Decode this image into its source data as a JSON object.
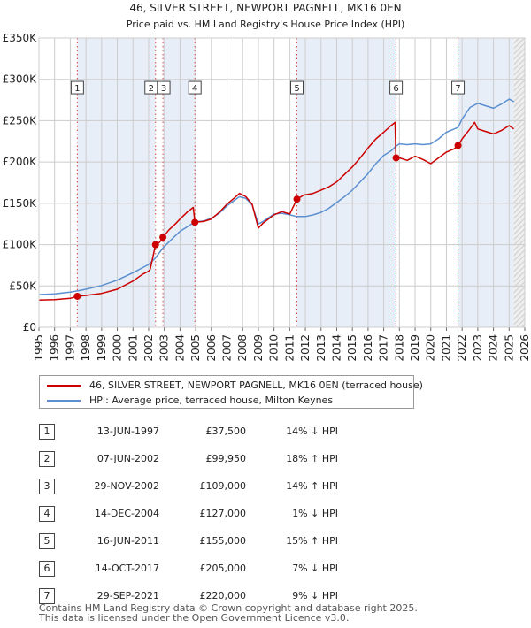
{
  "chart_data": {
    "type": "line",
    "title": "46, SILVER STREET, NEWPORT PAGNELL, MK16 0EN",
    "subtitle": "Price paid vs. HM Land Registry's House Price Index (HPI)",
    "xlabel": "",
    "ylabel": "",
    "xlim": [
      1995,
      2026
    ],
    "ylim": [
      0,
      350000
    ],
    "x_ticks": [
      "1995",
      "1996",
      "1997",
      "1998",
      "1999",
      "2000",
      "2001",
      "2002",
      "2003",
      "2004",
      "2005",
      "2006",
      "2007",
      "2008",
      "2009",
      "2010",
      "2011",
      "2012",
      "2013",
      "2014",
      "2015",
      "2016",
      "2017",
      "2018",
      "2019",
      "2020",
      "2021",
      "2022",
      "2023",
      "2024",
      "2025",
      "2026"
    ],
    "y_ticks": [
      {
        "value": 0,
        "label": "£0"
      },
      {
        "value": 50000,
        "label": "£50K"
      },
      {
        "value": 100000,
        "label": "£100K"
      },
      {
        "value": 150000,
        "label": "£150K"
      },
      {
        "value": 200000,
        "label": "£200K"
      },
      {
        "value": 250000,
        "label": "£250K"
      },
      {
        "value": 300000,
        "label": "£300K"
      },
      {
        "value": 350000,
        "label": "£350K"
      }
    ],
    "grid": true,
    "series": [
      {
        "name": "46, SILVER STREET, NEWPORT PAGNELL, MK16 0EN (terraced house)",
        "color": "#cc0000",
        "points": [
          [
            1995.0,
            33000
          ],
          [
            1996.0,
            33500
          ],
          [
            1997.0,
            35000
          ],
          [
            1997.45,
            37500
          ],
          [
            1998.0,
            38500
          ],
          [
            1999.0,
            41000
          ],
          [
            2000.0,
            46000
          ],
          [
            2001.0,
            56000
          ],
          [
            2001.6,
            64000
          ],
          [
            2002.0,
            68000
          ],
          [
            2002.1,
            70000
          ],
          [
            2002.44,
            99950
          ],
          [
            2002.7,
            103000
          ],
          [
            2002.91,
            109000
          ],
          [
            2003.3,
            118000
          ],
          [
            2003.7,
            125000
          ],
          [
            2004.0,
            131000
          ],
          [
            2004.5,
            140000
          ],
          [
            2004.85,
            145000
          ],
          [
            2004.95,
            127000
          ],
          [
            2005.5,
            128000
          ],
          [
            2006.0,
            131000
          ],
          [
            2006.5,
            139000
          ],
          [
            2007.0,
            149000
          ],
          [
            2007.5,
            157000
          ],
          [
            2007.8,
            162000
          ],
          [
            2008.2,
            158000
          ],
          [
            2008.6,
            149000
          ],
          [
            2009.0,
            120000
          ],
          [
            2009.3,
            126000
          ],
          [
            2010.0,
            136000
          ],
          [
            2010.5,
            140000
          ],
          [
            2011.0,
            137000
          ],
          [
            2011.46,
            155000
          ],
          [
            2011.9,
            160000
          ],
          [
            2012.5,
            162000
          ],
          [
            2013.0,
            166000
          ],
          [
            2013.5,
            170000
          ],
          [
            2014.0,
            176000
          ],
          [
            2014.5,
            185000
          ],
          [
            2015.0,
            194000
          ],
          [
            2015.5,
            205000
          ],
          [
            2016.0,
            217000
          ],
          [
            2016.5,
            228000
          ],
          [
            2017.0,
            236000
          ],
          [
            2017.4,
            243000
          ],
          [
            2017.72,
            248000
          ],
          [
            2017.78,
            205000
          ],
          [
            2018.0,
            205000
          ],
          [
            2018.5,
            202000
          ],
          [
            2019.0,
            207000
          ],
          [
            2019.5,
            203000
          ],
          [
            2020.0,
            198000
          ],
          [
            2020.5,
            205000
          ],
          [
            2021.0,
            212000
          ],
          [
            2021.5,
            216000
          ],
          [
            2021.74,
            220000
          ],
          [
            2022.0,
            228000
          ],
          [
            2022.5,
            240000
          ],
          [
            2022.8,
            248000
          ],
          [
            2023.0,
            240000
          ],
          [
            2023.5,
            237000
          ],
          [
            2024.0,
            234000
          ],
          [
            2024.5,
            238000
          ],
          [
            2025.0,
            244000
          ],
          [
            2025.3,
            240000
          ]
        ]
      },
      {
        "name": "HPI: Average price, terraced house, Milton Keynes",
        "color": "#5b8fd0",
        "points": [
          [
            1995.0,
            39500
          ],
          [
            1996.0,
            40500
          ],
          [
            1997.0,
            42500
          ],
          [
            1997.45,
            44000
          ],
          [
            1998.0,
            46000
          ],
          [
            1999.0,
            50500
          ],
          [
            2000.0,
            57000
          ],
          [
            2001.0,
            66000
          ],
          [
            2002.0,
            76000
          ],
          [
            2002.44,
            84000
          ],
          [
            2002.91,
            96000
          ],
          [
            2003.5,
            107000
          ],
          [
            2004.0,
            116000
          ],
          [
            2004.5,
            122000
          ],
          [
            2004.95,
            127500
          ],
          [
            2005.5,
            128500
          ],
          [
            2006.0,
            132000
          ],
          [
            2006.5,
            138000
          ],
          [
            2007.0,
            147000
          ],
          [
            2007.5,
            154000
          ],
          [
            2007.8,
            158000
          ],
          [
            2008.2,
            156000
          ],
          [
            2008.6,
            148000
          ],
          [
            2009.0,
            125000
          ],
          [
            2009.3,
            128000
          ],
          [
            2010.0,
            137000
          ],
          [
            2010.5,
            138000
          ],
          [
            2011.0,
            136000
          ],
          [
            2011.46,
            134000
          ],
          [
            2012.0,
            134000
          ],
          [
            2012.5,
            136000
          ],
          [
            2013.0,
            139000
          ],
          [
            2013.5,
            144000
          ],
          [
            2014.0,
            151000
          ],
          [
            2014.5,
            158000
          ],
          [
            2015.0,
            166000
          ],
          [
            2015.5,
            176000
          ],
          [
            2016.0,
            186000
          ],
          [
            2016.5,
            198000
          ],
          [
            2017.0,
            208000
          ],
          [
            2017.5,
            214000
          ],
          [
            2017.78,
            219000
          ],
          [
            2018.0,
            222000
          ],
          [
            2018.5,
            221000
          ],
          [
            2019.0,
            222000
          ],
          [
            2019.5,
            221000
          ],
          [
            2020.0,
            222000
          ],
          [
            2020.5,
            228000
          ],
          [
            2021.0,
            236000
          ],
          [
            2021.5,
            240000
          ],
          [
            2021.74,
            242000
          ],
          [
            2022.0,
            252000
          ],
          [
            2022.5,
            266000
          ],
          [
            2023.0,
            271000
          ],
          [
            2023.5,
            268000
          ],
          [
            2024.0,
            265000
          ],
          [
            2024.5,
            270000
          ],
          [
            2025.0,
            276000
          ],
          [
            2025.3,
            273000
          ]
        ]
      }
    ],
    "sales": [
      {
        "id": "1",
        "x": 1997.45,
        "y": 37500
      },
      {
        "id": "2",
        "x": 2002.44,
        "y": 99950
      },
      {
        "id": "3",
        "x": 2002.91,
        "y": 109000
      },
      {
        "id": "4",
        "x": 2004.95,
        "y": 127000
      },
      {
        "id": "5",
        "x": 2011.46,
        "y": 155000
      },
      {
        "id": "6",
        "x": 2017.79,
        "y": 205000
      },
      {
        "id": "7",
        "x": 2021.74,
        "y": 220000
      }
    ],
    "shaded_ranges": [
      [
        1997.45,
        2002.44
      ],
      [
        2002.91,
        2004.95
      ],
      [
        2011.46,
        2017.79
      ],
      [
        2021.74,
        2025.3
      ]
    ],
    "forecast_start": 2025.3,
    "label_y": 290000
  },
  "legend": {
    "property_label": "46, SILVER STREET, NEWPORT PAGNELL, MK16 0EN (terraced house)",
    "hpi_label": "HPI: Average price, terraced house, Milton Keynes",
    "property_color": "#cc0000",
    "hpi_color": "#5b8fd0"
  },
  "transactions": [
    {
      "num": "1",
      "date": "13-JUN-1997",
      "price": "£37,500",
      "hpi": "14% ↓ HPI"
    },
    {
      "num": "2",
      "date": "07-JUN-2002",
      "price": "£99,950",
      "hpi": "18% ↑ HPI"
    },
    {
      "num": "3",
      "date": "29-NOV-2002",
      "price": "£109,000",
      "hpi": "14% ↑ HPI"
    },
    {
      "num": "4",
      "date": "14-DEC-2004",
      "price": "£127,000",
      "hpi": "1% ↓ HPI"
    },
    {
      "num": "5",
      "date": "16-JUN-2011",
      "price": "£155,000",
      "hpi": "15% ↑ HPI"
    },
    {
      "num": "6",
      "date": "14-OCT-2017",
      "price": "£205,000",
      "hpi": "7% ↓ HPI"
    },
    {
      "num": "7",
      "date": "29-SEP-2021",
      "price": "£220,000",
      "hpi": "9% ↓ HPI"
    }
  ],
  "footer": {
    "line1": "Contains HM Land Registry data © Crown copyright and database right 2025.",
    "line2": "This data is licensed under the Open Government Licence v3.0."
  }
}
